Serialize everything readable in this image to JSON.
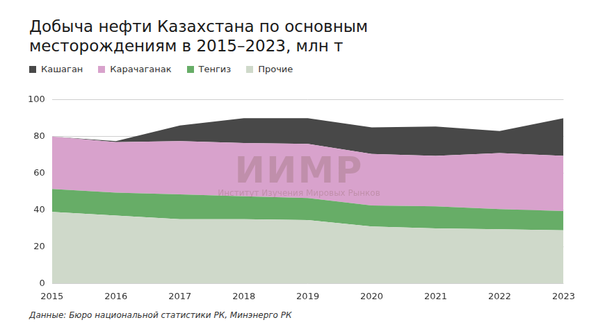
{
  "chart_data": {
    "type": "area",
    "title": "Добыча нефти Казахстана по основным месторождениям в 2015–2023, млн т",
    "note": "Данные: Бюро национальной статистики РК, Минэнерго РК",
    "watermark": {
      "text": "ИИМР",
      "subtitle": "Институт Изучения Мировых Рынков"
    },
    "categories": [
      "2015",
      "2016",
      "2017",
      "2018",
      "2019",
      "2020",
      "2021",
      "2022",
      "2023"
    ],
    "series": [
      {
        "name": "Кашаган",
        "color": "#484848",
        "values": [
          0,
          0.5,
          8.5,
          13.5,
          14,
          14.5,
          16,
          12,
          20.5
        ]
      },
      {
        "name": "Карачаганак",
        "color": "#d8a2cc",
        "values": [
          28.5,
          27.5,
          29,
          29,
          29.5,
          28,
          27.5,
          30.5,
          30
        ]
      },
      {
        "name": "Тенгиз",
        "color": "#67ad67",
        "values": [
          12.5,
          12.5,
          13.5,
          12.5,
          12,
          11.5,
          12,
          11,
          10.5
        ]
      },
      {
        "name": "Прочие",
        "color": "#cfd9ca",
        "values": [
          39,
          37,
          35,
          35,
          34.5,
          31,
          30,
          29.5,
          29
        ]
      }
    ],
    "stacked": true,
    "legend": "top-left",
    "grid": true,
    "ylim": [
      0,
      100
    ],
    "yticks": [
      0,
      20,
      40,
      60,
      80,
      100
    ]
  }
}
